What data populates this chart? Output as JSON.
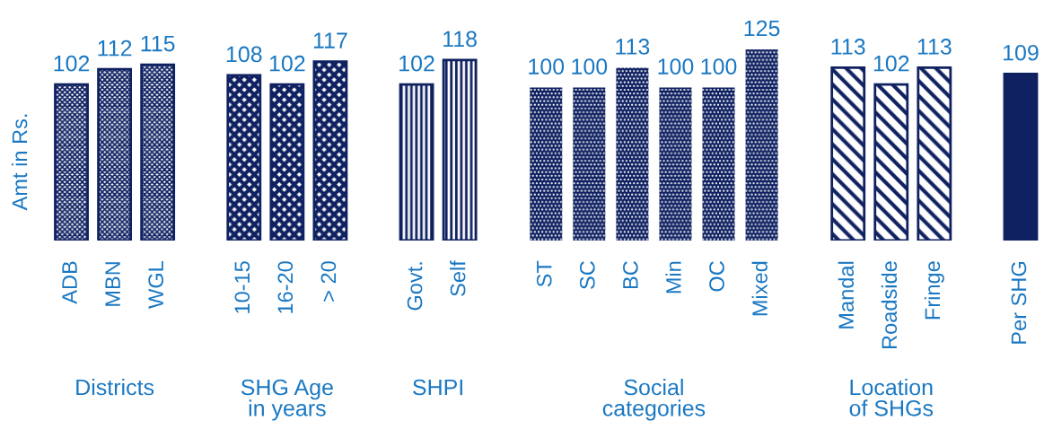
{
  "chart_data": [
    {
      "type": "bar",
      "categories": [
        "ADB",
        "MBN",
        "WGL"
      ],
      "values": [
        102,
        112,
        115
      ],
      "color": "#0f2161",
      "xlabel": "Districts",
      "ylabel": "Amt in Rs.",
      "data_labels": true,
      "tick_labels": "x"
    },
    {
      "type": "bar",
      "categories": [
        "10-15",
        "16-20",
        "> 20"
      ],
      "values": [
        108,
        102,
        117
      ],
      "color": "#0f2161",
      "xlabel": "SHG Age\nin years",
      "data_labels": true,
      "tick_labels": "x"
    },
    {
      "type": "bar",
      "categories": [
        "Govt.",
        "Self"
      ],
      "values": [
        102,
        118
      ],
      "color": "#0f2161",
      "xlabel": "SHPI",
      "data_labels": true,
      "tick_labels": "x"
    },
    {
      "type": "bar",
      "categories": [
        "ST",
        "SC",
        "BC",
        "Min",
        "OC",
        "Mixed"
      ],
      "values": [
        100,
        100,
        113,
        100,
        100,
        125
      ],
      "color": "#0f2161",
      "xlabel": "Social\ncategories",
      "data_labels": true,
      "tick_labels": "x"
    },
    {
      "type": "bar",
      "categories": [
        "Mandal",
        "Roadside",
        "Fringe"
      ],
      "values": [
        113,
        102,
        113
      ],
      "color": "#0f2161",
      "xlabel": "Location\nof SHGs",
      "data_labels": true,
      "tick_labels": "x"
    },
    {
      "type": "bar",
      "categories": [
        "Per SHG"
      ],
      "values": [
        109
      ],
      "color": "#0f2161",
      "data_labels": true,
      "tick_labels": "x"
    }
  ]
}
